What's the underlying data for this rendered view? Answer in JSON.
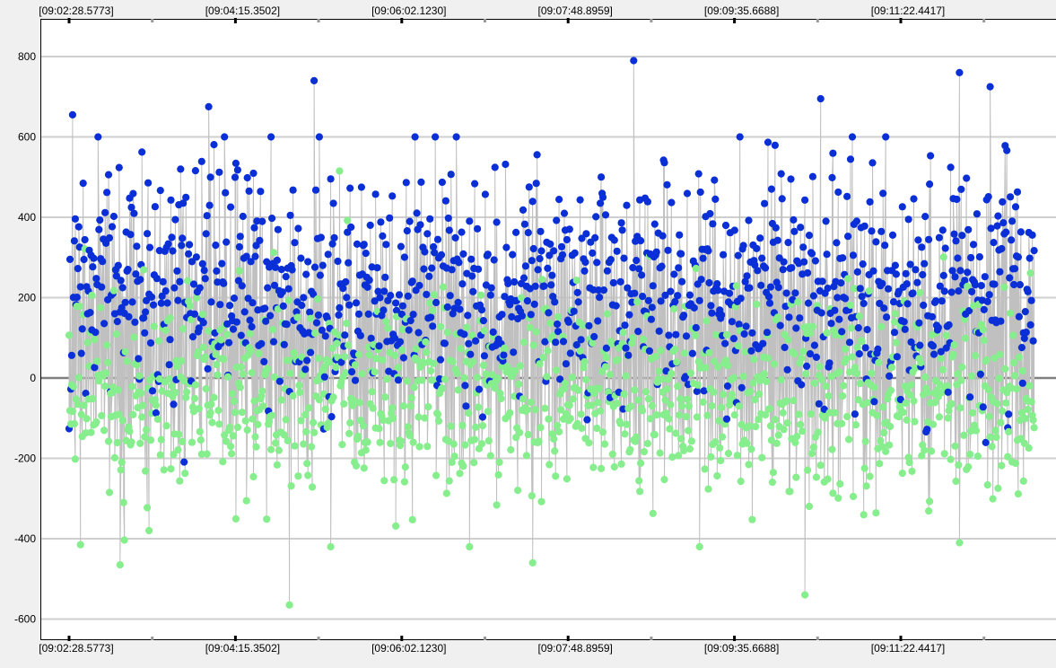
{
  "colors": {
    "page_background": "#f0f0f0",
    "plot_background": "#ffffff",
    "gridline": "#cfcfcf",
    "zero_line": "#808080",
    "connector": "#c0c0c0",
    "series_blue": "#0a2fd6",
    "series_green": "#86ee8c",
    "frame": "#000000"
  },
  "chart_data": {
    "type": "scatter",
    "title": "",
    "xlabel": "",
    "ylabel": "",
    "x_axis": {
      "kind": "time",
      "range": [
        "09:02:28.5773",
        "09:12:48.0000"
      ],
      "tick_labels": [
        "[09:02:28.5773]",
        "[09:04:15.3502]",
        "[09:06:02.1230]",
        "[09:07:48.8959]",
        "[09:09:35.6688]",
        "[09:11:22.4417]"
      ],
      "tick_labels_top": true,
      "tick_labels_bottom": true
    },
    "y_axis": {
      "range": [
        -620,
        840
      ],
      "ticks": [
        800,
        600,
        400,
        200,
        0,
        -200,
        -400,
        -600
      ]
    },
    "grid": "horizontal",
    "zero_line": true,
    "legend": "none",
    "connector_line": true,
    "series": [
      {
        "color": "#0a2fd6",
        "point_count": 1100,
        "typical_range": [
          -300,
          800
        ],
        "mean_approx": 230,
        "notable_points": [
          {
            "time": "09:02:31",
            "y": 655
          },
          {
            "time": "09:03:58",
            "y": 675
          },
          {
            "time": "09:04:38",
            "y": 600
          },
          {
            "time": "09:05:06",
            "y": 740
          },
          {
            "time": "09:08:31",
            "y": 790
          },
          {
            "time": "09:10:31",
            "y": 695
          },
          {
            "time": "09:12:00",
            "y": 760
          },
          {
            "time": "09:12:20",
            "y": 725
          }
        ]
      },
      {
        "color": "#86ee8c",
        "point_count": 1100,
        "typical_range": [
          -570,
          520
        ],
        "mean_approx": -40,
        "notable_points": [
          {
            "time": "09:02:36",
            "y": -415
          },
          {
            "time": "09:03:01",
            "y": -465
          },
          {
            "time": "09:04:50",
            "y": -565
          },
          {
            "time": "09:05:22",
            "y": 515
          },
          {
            "time": "09:07:26",
            "y": -460
          },
          {
            "time": "09:10:21",
            "y": -540
          },
          {
            "time": "09:12:00",
            "y": -410
          }
        ]
      }
    ]
  }
}
